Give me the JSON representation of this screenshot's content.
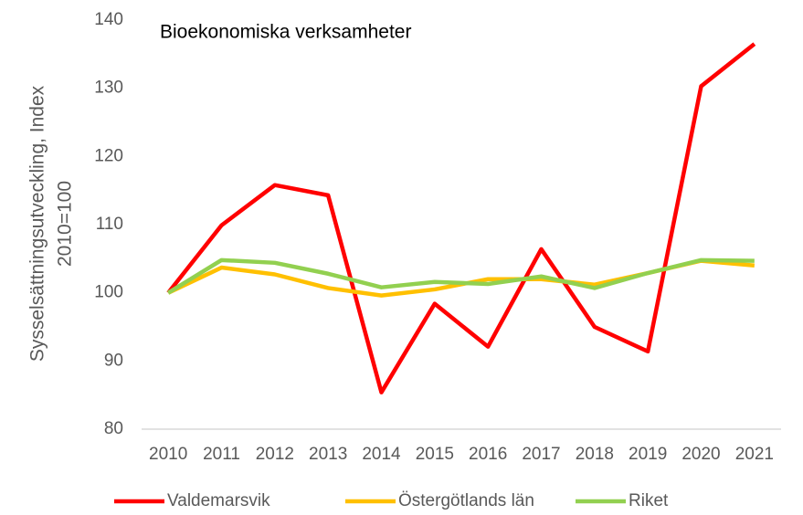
{
  "chart_data": {
    "type": "line",
    "title": "Bioekonomiska verksamheter",
    "ylabel": [
      "Sysselsättningsutveckling, Index",
      "2010=100"
    ],
    "categories": [
      "2010",
      "2011",
      "2012",
      "2013",
      "2014",
      "2015",
      "2016",
      "2017",
      "2018",
      "2019",
      "2020",
      "2021"
    ],
    "series": [
      {
        "name": "Valdemarsvik",
        "color": "#ff0000",
        "values": [
          100,
          109.9,
          115.8,
          114.3,
          85.4,
          98.4,
          92.1,
          106.4,
          95.0,
          91.4,
          130.3,
          136.5
        ]
      },
      {
        "name": "Östergötlands län",
        "color": "#ffc000",
        "values": [
          100,
          103.7,
          102.7,
          100.7,
          99.6,
          100.5,
          102.0,
          102.0,
          101.2,
          102.9,
          104.7,
          104.0
        ]
      },
      {
        "name": "Riket",
        "color": "#92d050",
        "values": [
          100,
          104.8,
          104.4,
          102.8,
          100.8,
          101.6,
          101.3,
          102.4,
          100.7,
          102.9,
          104.8,
          104.7
        ]
      }
    ],
    "ylim": [
      80,
      140
    ],
    "yticks": [
      80,
      90,
      100,
      110,
      120,
      130,
      140
    ],
    "grid": false,
    "legend": "bottom"
  }
}
